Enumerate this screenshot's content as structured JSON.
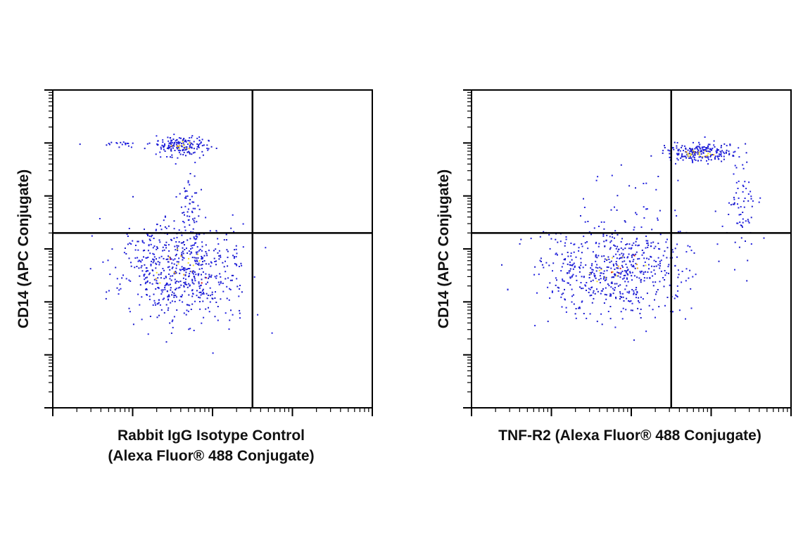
{
  "chart_data": [
    {
      "type": "scatter",
      "subtype": "flow-cytometry-density-dot-plot",
      "xlabel_lines": [
        "Rabbit IgG Isotype Control",
        "(Alexa Fluor® 488 Conjugate)"
      ],
      "ylabel": "CD14 (APC Conjugate)",
      "x_scale": "log",
      "y_scale": "log",
      "x_decades": [
        0,
        4
      ],
      "y_decades": [
        0,
        6
      ],
      "gate": {
        "x": 2.5,
        "y": 3.3
      },
      "density_colors": [
        "#1a1acc",
        "#2222e0",
        "#f0e020",
        "#e8a010",
        "#d01010"
      ],
      "populations": [
        {
          "name": "",
          "x_center": 1.6,
          "y_center": 2.6,
          "x_spread": 0.38,
          "y_spread": 0.48,
          "count": 650,
          "core": 0.12
        },
        {
          "name": "",
          "x_center": 1.62,
          "y_center": 4.95,
          "x_spread": 0.15,
          "y_spread": 0.09,
          "count": 170,
          "core": 0.25
        },
        {
          "name": "",
          "x_center": 0.85,
          "y_center": 4.98,
          "x_spread": 0.22,
          "y_spread": 0.05,
          "count": 22,
          "core": 0
        },
        {
          "name": "",
          "x_center": 1.72,
          "y_center": 3.9,
          "x_spread": 0.08,
          "y_spread": 0.45,
          "count": 50,
          "core": 0
        }
      ],
      "quadrant_counts": {
        "upper_left": "",
        "upper_right": "",
        "lower_left": "",
        "lower_right": ""
      }
    },
    {
      "type": "scatter",
      "subtype": "flow-cytometry-density-dot-plot",
      "xlabel_lines": [
        "TNF-R2 (Alexa Fluor® 488 Conjugate)"
      ],
      "ylabel": "CD14 (APC Conjugate)",
      "x_scale": "log",
      "y_scale": "log",
      "x_decades": [
        0,
        4
      ],
      "y_decades": [
        0,
        6
      ],
      "gate": {
        "x": 2.5,
        "y": 3.3
      },
      "density_colors": [
        "#1a1acc",
        "#2222e0",
        "#f0e020",
        "#e8a010",
        "#d01010"
      ],
      "populations": [
        {
          "name": "",
          "x_center": 1.8,
          "y_center": 2.6,
          "x_spread": 0.45,
          "y_spread": 0.42,
          "count": 620,
          "core": 0.12
        },
        {
          "name": "",
          "x_center": 2.85,
          "y_center": 4.8,
          "x_spread": 0.22,
          "y_spread": 0.09,
          "count": 230,
          "core": 0.3
        },
        {
          "name": "",
          "x_center": 3.4,
          "y_center": 3.8,
          "x_spread": 0.09,
          "y_spread": 0.42,
          "count": 70,
          "core": 0
        },
        {
          "name": "",
          "x_center": 2.1,
          "y_center": 3.8,
          "x_spread": 0.45,
          "y_spread": 0.45,
          "count": 25,
          "core": 0
        }
      ],
      "quadrant_counts": {
        "upper_left": "",
        "upper_right": "",
        "lower_left": "",
        "lower_right": ""
      }
    }
  ]
}
